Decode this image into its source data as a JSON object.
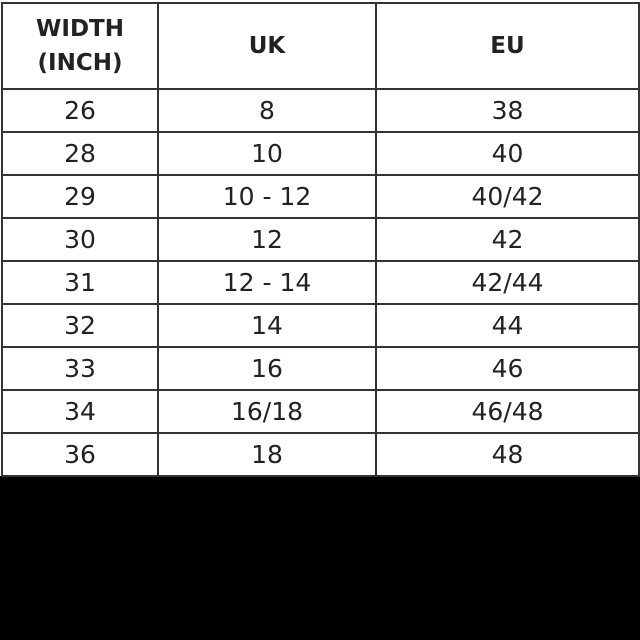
{
  "table": {
    "header": [
      "WIDTH (INCH)",
      "UK",
      "EU"
    ],
    "rows": [
      [
        "26",
        "8",
        "38"
      ],
      [
        "28",
        "10",
        "40"
      ],
      [
        "29",
        "10 - 12",
        "40/42"
      ],
      [
        "30",
        "12",
        "42"
      ],
      [
        "31",
        "12 - 14",
        "42/44"
      ],
      [
        "32",
        "14",
        "44"
      ],
      [
        "33",
        "16",
        "46"
      ],
      [
        "34",
        "16/18",
        "46/48"
      ],
      [
        "36",
        "18",
        "48"
      ]
    ]
  }
}
